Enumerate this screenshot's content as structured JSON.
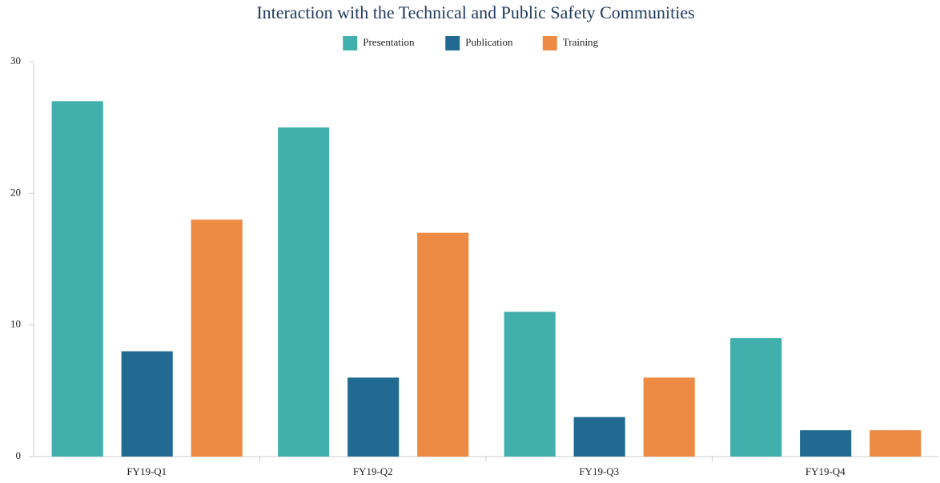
{
  "chart_data": {
    "type": "bar",
    "title": "Interaction with the Technical and Public Safety Communities",
    "categories": [
      "FY19-Q1",
      "FY19-Q2",
      "FY19-Q3",
      "FY19-Q4"
    ],
    "series": [
      {
        "name": "Presentation",
        "color": "#41b0ac",
        "values": [
          27,
          25,
          11,
          9
        ]
      },
      {
        "name": "Publication",
        "color": "#236a93",
        "values": [
          8,
          6,
          3,
          2
        ]
      },
      {
        "name": "Training",
        "color": "#ed8a43",
        "values": [
          18,
          17,
          6,
          2
        ]
      }
    ],
    "ylim": [
      0,
      30
    ],
    "yticks": [
      0,
      10,
      20,
      30
    ],
    "grid": false,
    "legend": "top"
  }
}
